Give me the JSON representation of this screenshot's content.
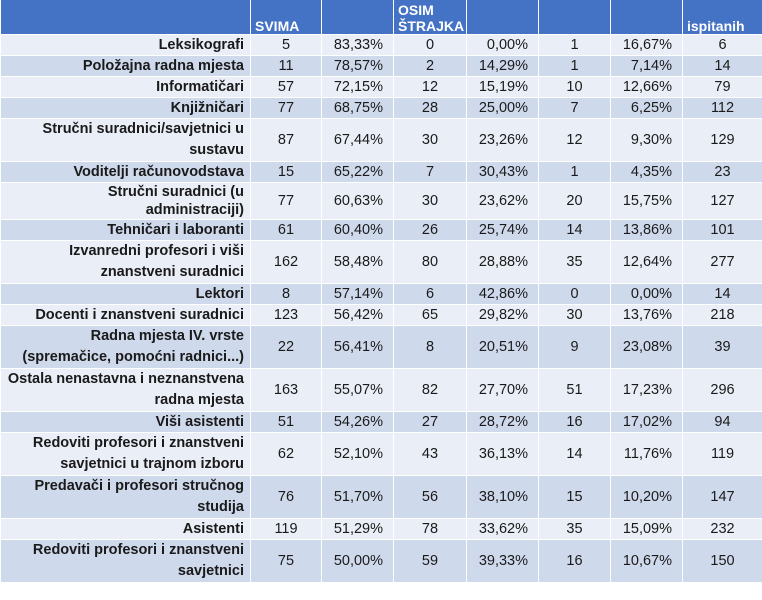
{
  "table": {
    "headers": [
      "",
      "SVIMA",
      "",
      "OSIM ŠTRAJKA",
      "",
      "",
      "",
      "ispitanih"
    ],
    "rows": [
      {
        "category": "Leksikografi",
        "c1": "5",
        "p1": "83,33%",
        "c2": "0",
        "p2": "0,00%",
        "c3": "1",
        "p3": "16,67%",
        "total": "6"
      },
      {
        "category": "Položajna radna mjesta",
        "c1": "11",
        "p1": "78,57%",
        "c2": "2",
        "p2": "14,29%",
        "c3": "1",
        "p3": "7,14%",
        "total": "14"
      },
      {
        "category": "Informatičari",
        "c1": "57",
        "p1": "72,15%",
        "c2": "12",
        "p2": "15,19%",
        "c3": "10",
        "p3": "12,66%",
        "total": "79"
      },
      {
        "category": "Knjižničari",
        "c1": "77",
        "p1": "68,75%",
        "c2": "28",
        "p2": "25,00%",
        "c3": "7",
        "p3": "6,25%",
        "total": "112"
      },
      {
        "category": "Stručni suradnici/savjetnici u sustavu",
        "c1": "87",
        "p1": "67,44%",
        "c2": "30",
        "p2": "23,26%",
        "c3": "12",
        "p3": "9,30%",
        "total": "129"
      },
      {
        "category": "Voditelji računovodstava",
        "c1": "15",
        "p1": "65,22%",
        "c2": "7",
        "p2": "30,43%",
        "c3": "1",
        "p3": "4,35%",
        "total": "23"
      },
      {
        "category": "Stručni suradnici (u administraciji)",
        "c1": "77",
        "p1": "60,63%",
        "c2": "30",
        "p2": "23,62%",
        "c3": "20",
        "p3": "15,75%",
        "total": "127"
      },
      {
        "category": "Tehničari i laboranti",
        "c1": "61",
        "p1": "60,40%",
        "c2": "26",
        "p2": "25,74%",
        "c3": "14",
        "p3": "13,86%",
        "total": "101"
      },
      {
        "category": "Izvanredni profesori i viši znanstveni suradnici",
        "c1": "162",
        "p1": "58,48%",
        "c2": "80",
        "p2": "28,88%",
        "c3": "35",
        "p3": "12,64%",
        "total": "277"
      },
      {
        "category": "Lektori",
        "c1": "8",
        "p1": "57,14%",
        "c2": "6",
        "p2": "42,86%",
        "c3": "0",
        "p3": "0,00%",
        "total": "14"
      },
      {
        "category": "Docenti i znanstveni suradnici",
        "c1": "123",
        "p1": "56,42%",
        "c2": "65",
        "p2": "29,82%",
        "c3": "30",
        "p3": "13,76%",
        "total": "218"
      },
      {
        "category": "Radna mjesta IV. vrste (spremačice, pomoćni radnici...)",
        "c1": "22",
        "p1": "56,41%",
        "c2": "8",
        "p2": "20,51%",
        "c3": "9",
        "p3": "23,08%",
        "total": "39"
      },
      {
        "category": "Ostala nenastavna i neznanstvena radna mjesta",
        "c1": "163",
        "p1": "55,07%",
        "c2": "82",
        "p2": "27,70%",
        "c3": "51",
        "p3": "17,23%",
        "total": "296"
      },
      {
        "category": "Viši asistenti",
        "c1": "51",
        "p1": "54,26%",
        "c2": "27",
        "p2": "28,72%",
        "c3": "16",
        "p3": "17,02%",
        "total": "94"
      },
      {
        "category": "Redoviti profesori i znanstveni savjetnici u trajnom izboru",
        "c1": "62",
        "p1": "52,10%",
        "c2": "43",
        "p2": "36,13%",
        "c3": "14",
        "p3": "11,76%",
        "total": "119"
      },
      {
        "category": "Predavači i profesori stručnog studija",
        "c1": "76",
        "p1": "51,70%",
        "c2": "56",
        "p2": "38,10%",
        "c3": "15",
        "p3": "10,20%",
        "total": "147"
      },
      {
        "category": "Asistenti",
        "c1": "119",
        "p1": "51,29%",
        "c2": "78",
        "p2": "33,62%",
        "c3": "35",
        "p3": "15,09%",
        "total": "232"
      },
      {
        "category": "Redoviti profesori i znanstveni savjetnici",
        "c1": "75",
        "p1": "50,00%",
        "c2": "59",
        "p2": "39,33%",
        "c3": "16",
        "p3": "10,67%",
        "total": "150"
      }
    ],
    "tall_rows": [
      4,
      8,
      11,
      12,
      14,
      15,
      17
    ]
  },
  "colors": {
    "header_bg": "#4472c4",
    "row_light": "#e9eef7",
    "row_dark": "#cfd9ec"
  }
}
